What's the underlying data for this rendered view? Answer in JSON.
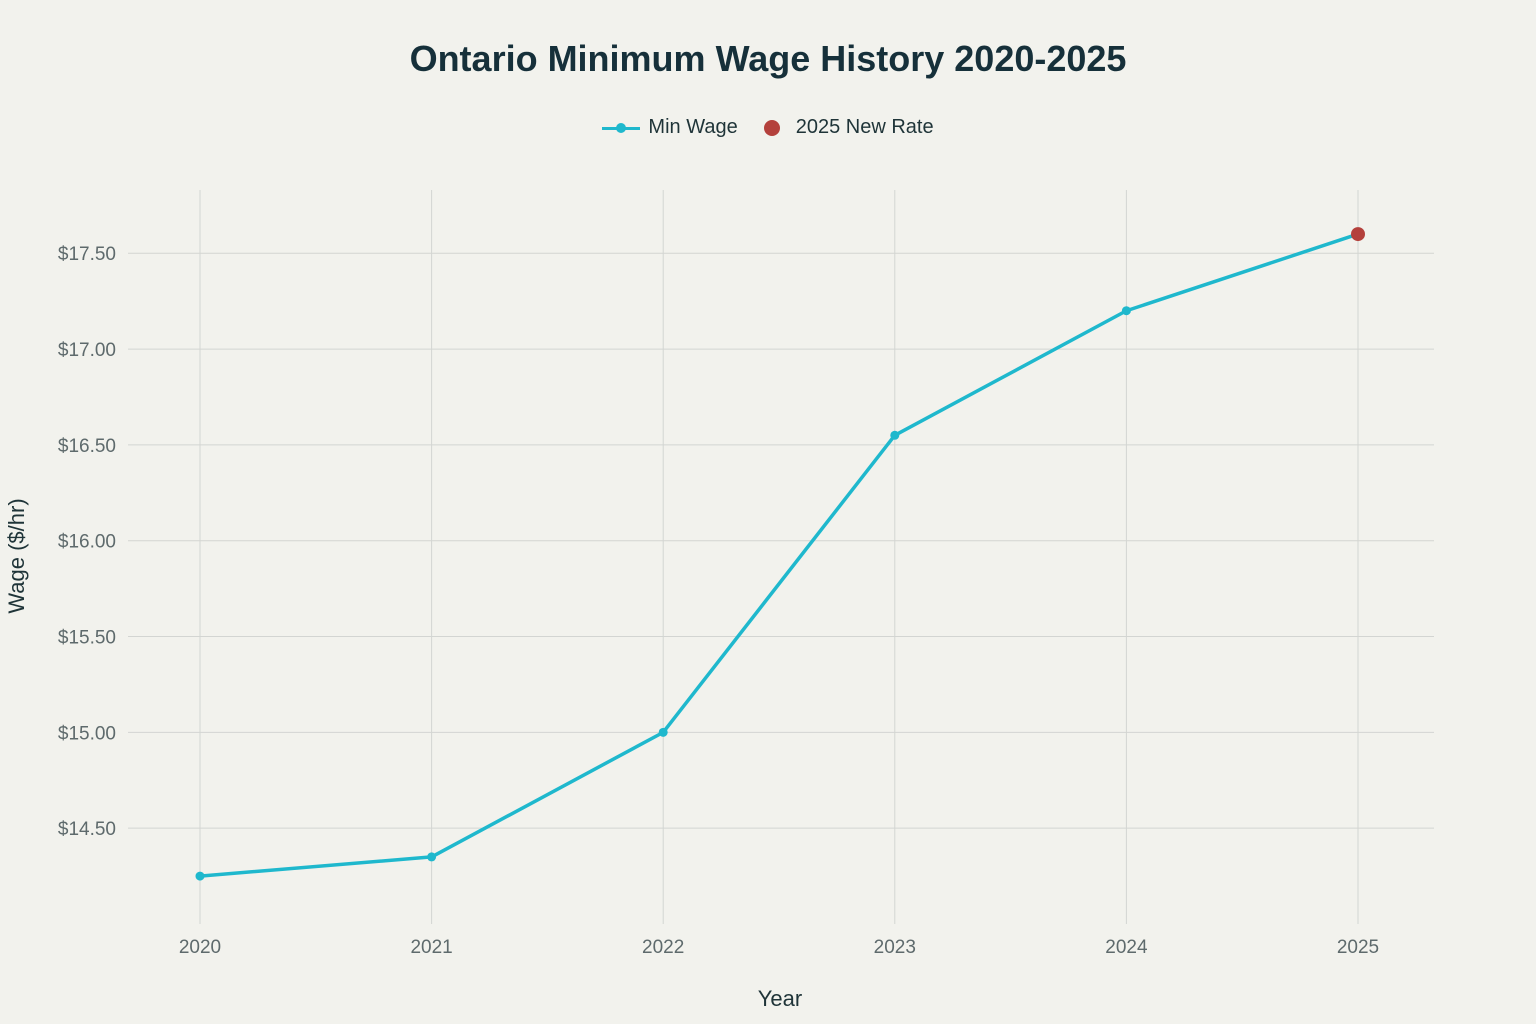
{
  "chart_data": {
    "type": "line",
    "title": "Ontario Minimum Wage History 2020-2025",
    "xlabel": "Year",
    "ylabel": "Wage ($/hr)",
    "categories": [
      "2020",
      "2021",
      "2022",
      "2023",
      "2024",
      "2025"
    ],
    "series": [
      {
        "name": "Min Wage",
        "values": [
          14.25,
          14.35,
          15.0,
          16.55,
          17.2,
          17.6
        ],
        "color": "#1fb8cd",
        "mode": "lines+markers"
      },
      {
        "name": "2025 New Rate",
        "points": [
          {
            "x": "2025",
            "y": 17.6
          }
        ],
        "color": "#b4413c",
        "mode": "markers"
      }
    ],
    "y_ticks": [
      14.5,
      15.0,
      15.5,
      16.0,
      16.5,
      17.0,
      17.5
    ],
    "y_tick_labels": [
      "$14.50",
      "$15.00",
      "$15.50",
      "$16.00",
      "$16.50",
      "$17.00",
      "$17.50"
    ],
    "ylim": [
      14.0,
      17.83
    ],
    "grid": true,
    "legend_position": "top-center"
  },
  "colors": {
    "background": "#f2f2ed",
    "grid": "#d3d5d2",
    "line": "#1fb8cd",
    "highlight": "#b4413c"
  }
}
